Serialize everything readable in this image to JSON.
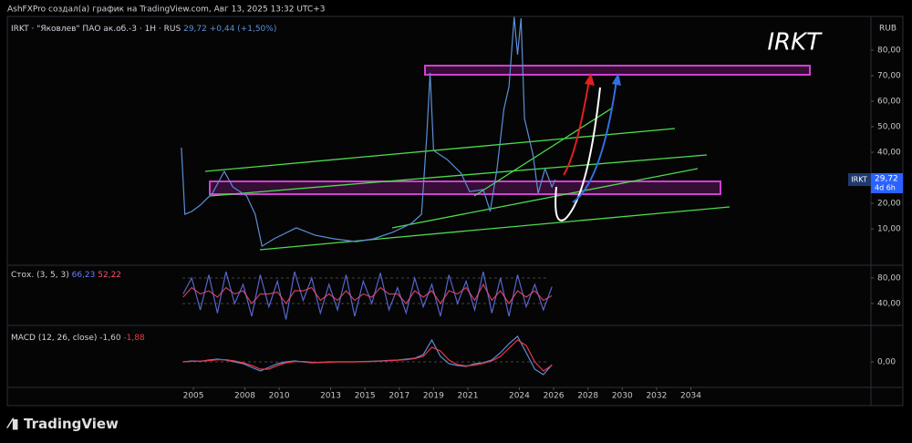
{
  "header": "AshFXPro создал(а) график на TradingView.com, Авг 13, 2025 13:32 UTC+3",
  "logo": "TradingView",
  "chart_data": [
    {
      "type": "line",
      "title": "IRKT · \"Яковлев\" ПАО ак.об.-3 · 1H · RUS",
      "quote": "29,72",
      "change": "+0,44 (+1,50%)",
      "watermark": "IRKT",
      "currency": "RUB",
      "price_tag": {
        "symbol": "IRKT",
        "price": "29,72",
        "countdown": "4d 6h"
      },
      "x": [
        2004.3,
        2004.5,
        2004.9,
        2005.4,
        2006.1,
        2006.8,
        2007.3,
        2008.1,
        2008.6,
        2009.0,
        2009.7,
        2011.0,
        2012.1,
        2013.2,
        2014.5,
        2015.5,
        2016.6,
        2017.7,
        2018.3,
        2018.6,
        2018.8,
        2019.0,
        2019.8,
        2020.6,
        2021.1,
        2021.9,
        2022.3,
        2022.7,
        2023.1,
        2023.4,
        2023.7,
        2023.9,
        2024.1,
        2024.3,
        2024.8,
        2025.1,
        2025.5,
        2025.9,
        2026.1
      ],
      "series": [
        {
          "color": "#5b8fd6",
          "values": [
            41.8,
            15.7,
            16.8,
            19.3,
            23.9,
            32.5,
            26.4,
            22.9,
            15.7,
            3.2,
            6.1,
            10.4,
            7.5,
            6.1,
            5.0,
            6.1,
            8.6,
            12.1,
            15.7,
            46.1,
            71.1,
            40.7,
            37.1,
            31.8,
            24.6,
            25.4,
            16.8,
            33.6,
            56.8,
            65.7,
            93.0,
            78.2,
            92.5,
            53.2,
            38.9,
            23.9,
            33.6,
            26.4,
            29.3
          ]
        }
      ],
      "xlim": [
        1994.15,
        2044.5
      ],
      "xticks": [
        2005,
        2008,
        2010,
        2013,
        2015,
        2017,
        2019,
        2021,
        2024,
        2026,
        2028,
        2030,
        2032,
        2034
      ],
      "ylim": [
        -3.9,
        93.2
      ],
      "yticks": [
        {
          "value": 10,
          "label": "10,00"
        },
        {
          "value": 20,
          "label": "20,00"
        },
        {
          "value": 40,
          "label": "40,00"
        },
        {
          "value": 50,
          "label": "50,00"
        },
        {
          "value": 60,
          "label": "60,00"
        },
        {
          "value": 70,
          "label": "70,00"
        },
        {
          "value": 80,
          "label": "80,00"
        }
      ]
    },
    {
      "type": "line",
      "title": "Стох. (3, 5, 3)",
      "x": [
        2004.4,
        2004.9,
        2005.4,
        2005.9,
        2006.4,
        2006.9,
        2007.4,
        2007.9,
        2008.4,
        2008.9,
        2009.4,
        2009.9,
        2010.4,
        2010.9,
        2011.4,
        2011.9,
        2012.4,
        2012.9,
        2013.4,
        2013.9,
        2014.4,
        2014.9,
        2015.4,
        2015.9,
        2016.4,
        2016.9,
        2017.4,
        2017.9,
        2018.4,
        2018.9,
        2019.4,
        2019.9,
        2020.4,
        2020.9,
        2021.4,
        2021.9,
        2022.4,
        2022.9,
        2023.4,
        2023.9,
        2024.4,
        2024.9,
        2025.4,
        2025.9
      ],
      "series": [
        {
          "color": "#6a7dff",
          "last": "66,23",
          "values": [
            55,
            80,
            30,
            85,
            25,
            90,
            40,
            70,
            20,
            85,
            35,
            75,
            15,
            90,
            45,
            80,
            25,
            70,
            30,
            85,
            20,
            75,
            40,
            88,
            30,
            65,
            25,
            80,
            35,
            70,
            20,
            85,
            40,
            75,
            30,
            90,
            25,
            80,
            20,
            85,
            35,
            70,
            30,
            66.23
          ]
        },
        {
          "color": "#ff4d6d",
          "last": "52,22",
          "values": [
            50,
            65,
            55,
            60,
            50,
            65,
            55,
            60,
            40,
            55,
            55,
            58,
            40,
            60,
            60,
            65,
            45,
            55,
            45,
            60,
            45,
            55,
            50,
            65,
            55,
            55,
            40,
            60,
            50,
            60,
            40,
            60,
            55,
            65,
            45,
            70,
            45,
            60,
            40,
            60,
            50,
            60,
            45,
            52.22
          ]
        }
      ],
      "xlim": [
        1994.15,
        2044.5
      ],
      "ylim": [
        7.1,
        98.6
      ],
      "yticks": [
        {
          "value": 40,
          "label": "40,00"
        },
        {
          "value": 80,
          "label": "80,00"
        }
      ]
    },
    {
      "type": "line",
      "title": "MACD (12, 26, close)",
      "x": [
        2004.4,
        2004.9,
        2005.4,
        2005.9,
        2006.4,
        2006.9,
        2007.4,
        2007.9,
        2008.4,
        2008.9,
        2009.4,
        2009.9,
        2010.4,
        2010.9,
        2011.4,
        2011.9,
        2012.4,
        2012.9,
        2013.4,
        2013.9,
        2014.4,
        2014.9,
        2015.4,
        2015.9,
        2016.4,
        2016.9,
        2017.4,
        2017.9,
        2018.4,
        2018.9,
        2019.4,
        2019.9,
        2020.4,
        2020.9,
        2021.4,
        2021.9,
        2022.4,
        2022.9,
        2023.4,
        2023.9,
        2024.4,
        2024.9,
        2025.4,
        2025.9
      ],
      "series": [
        {
          "color": "#5b8fd6",
          "last": "-1,60",
          "values": [
            0,
            0.5,
            0.3,
            1,
            1.5,
            1,
            0,
            -1,
            -3,
            -5,
            -3,
            -1,
            0,
            0.5,
            0,
            -0.5,
            -0.3,
            0,
            0,
            0,
            0,
            0.2,
            0.3,
            0.5,
            0.8,
            1,
            1.5,
            2,
            4,
            12,
            3,
            -1,
            -2,
            -2.5,
            -1,
            -0.5,
            1,
            5,
            10,
            14,
            5,
            -4,
            -7,
            -1.6
          ]
        },
        {
          "color": "#f23645",
          "last": "-1,88",
          "values": [
            0,
            0.3,
            0.4,
            0.7,
            1.2,
            1.2,
            0.5,
            -0.5,
            -2,
            -4,
            -4,
            -2,
            -0.5,
            0.2,
            0.2,
            -0.2,
            -0.4,
            -0.2,
            0,
            0,
            0,
            0.1,
            0.2,
            0.4,
            0.6,
            0.9,
            1.2,
            1.8,
            3,
            8,
            6,
            1,
            -1.5,
            -2.2,
            -1.8,
            -0.8,
            0.5,
            3,
            7.5,
            12,
            9,
            0,
            -5,
            -1.88
          ]
        }
      ],
      "xlim": [
        1994.15,
        2044.5
      ],
      "ylim": [
        -14,
        19.5
      ],
      "yticks": [
        {
          "value": 0,
          "label": "0,00"
        }
      ]
    }
  ]
}
